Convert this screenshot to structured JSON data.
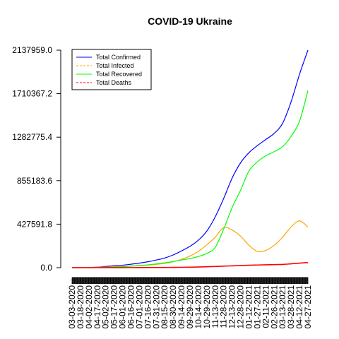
{
  "chart_data": {
    "type": "line",
    "title": "COVID-19 Ukraine",
    "xlabel": "",
    "ylabel": "",
    "ylim": [
      0,
      2137959.0
    ],
    "y_ticks": [
      "0.0",
      "427591.8",
      "855183.6",
      "1282775.4",
      "1710367.2",
      "2137959.0"
    ],
    "x_tick_labels": [
      "03-03-2020",
      "03-18-2020",
      "04-02-2020",
      "04-17-2020",
      "05-02-2020",
      "05-17-2020",
      "06-01-2020",
      "06-16-2020",
      "07-01-2020",
      "07-16-2020",
      "07-31-2020",
      "08-15-2020",
      "08-30-2020",
      "09-14-2020",
      "09-29-2020",
      "10-14-2020",
      "10-29-2020",
      "11-13-2020",
      "11-28-2020",
      "12-13-2020",
      "12-28-2020",
      "01-12-2021",
      "01-27-2021",
      "02-11-2021",
      "02-26-2021",
      "03-13-2021",
      "03-28-2021",
      "04-12-2021",
      "04-27-2021"
    ],
    "legend": {
      "placement": "top-left"
    },
    "series": [
      {
        "name": "Total Confirmed",
        "color": "#0000ff",
        "dash": "solid",
        "values": [
          1,
          3,
          1500,
          5000,
          12000,
          18000,
          24000,
          34000,
          45000,
          58000,
          75000,
          95000,
          125000,
          165000,
          210000,
          270000,
          360000,
          500000,
          680000,
          880000,
          1030000,
          1130000,
          1200000,
          1260000,
          1320000,
          1420000,
          1630000,
          1900000,
          2137959
        ]
      },
      {
        "name": "Total Infected",
        "color": "#ffa500",
        "dash": "dashed",
        "values": [
          1,
          3,
          1200,
          3500,
          6000,
          9000,
          11000,
          15000,
          20000,
          25000,
          32000,
          42000,
          58000,
          82000,
          115000,
          160000,
          225000,
          300000,
          395000,
          370000,
          310000,
          220000,
          160000,
          170000,
          220000,
          300000,
          400000,
          460000,
          400000
        ]
      },
      {
        "name": "Total Recovered",
        "color": "#00ff00",
        "dash": "solid",
        "values": [
          0,
          0,
          100,
          800,
          3500,
          6000,
          10000,
          15000,
          21000,
          28000,
          37000,
          48000,
          60000,
          76000,
          90000,
          110000,
          140000,
          200000,
          380000,
          590000,
          760000,
          950000,
          1040000,
          1100000,
          1140000,
          1190000,
          1290000,
          1440000,
          1740000
        ]
      },
      {
        "name": "Total Deaths",
        "color": "#ff0000",
        "dash": "dashed",
        "values": [
          0,
          0,
          40,
          120,
          300,
          500,
          700,
          900,
          1200,
          1500,
          1800,
          2300,
          3000,
          3500,
          5000,
          6500,
          9000,
          12000,
          15000,
          18000,
          21000,
          24000,
          26000,
          28000,
          30000,
          32000,
          38000,
          45000,
          50000
        ]
      }
    ]
  }
}
